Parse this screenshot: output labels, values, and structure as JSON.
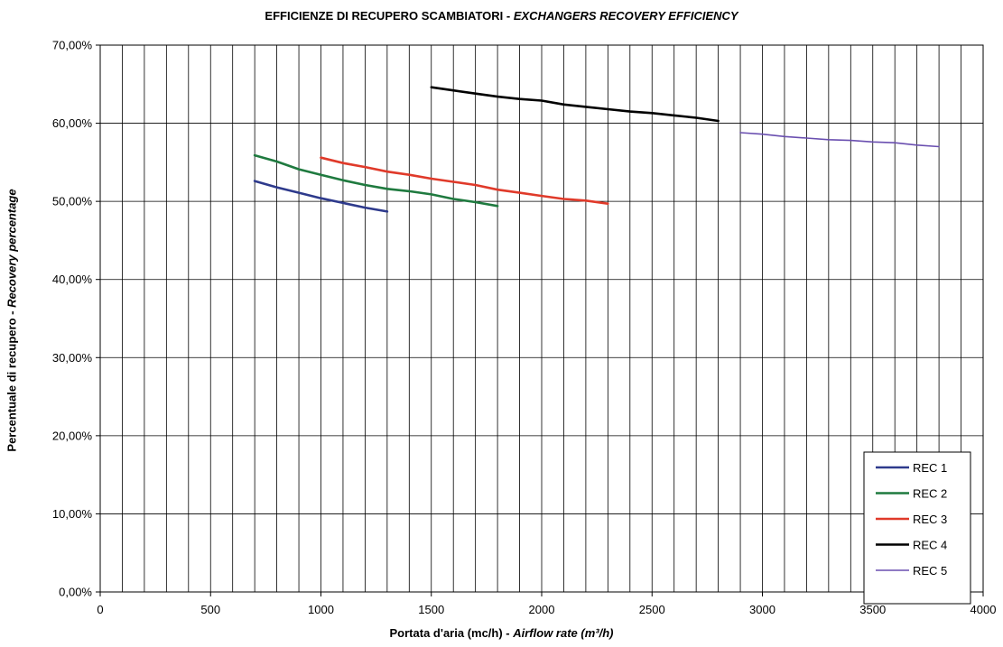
{
  "chart_data": {
    "type": "line",
    "title_main": "EFFICIENZE DI RECUPERO SCAMBIATORI - ",
    "title_italic": "EXCHANGERS RECOVERY EFFICIENCY",
    "xlabel_main": "Portata d'aria (mc/h) - ",
    "xlabel_italic": "Airflow rate (m³/h)",
    "ylabel_main": "Percentuale di recupero - ",
    "ylabel_italic": "Recovery percentage",
    "xlim": [
      0,
      4000
    ],
    "ylim": [
      0,
      0.7
    ],
    "x_ticks": [
      0,
      500,
      1000,
      1500,
      2000,
      2500,
      3000,
      3500,
      4000
    ],
    "x_tick_labels": [
      "0",
      "500",
      "1000",
      "1500",
      "2000",
      "2500",
      "3000",
      "3500",
      "4000"
    ],
    "x_minor_grid_step": 100,
    "y_ticks": [
      0,
      0.1,
      0.2,
      0.3,
      0.4,
      0.5,
      0.6,
      0.7
    ],
    "y_tick_labels": [
      "0,00%",
      "10,00%",
      "20,00%",
      "30,00%",
      "40,00%",
      "50,00%",
      "60,00%",
      "70,00%"
    ],
    "grid": true,
    "legend_position": "bottom-right",
    "series": [
      {
        "name": "REC 1",
        "color": "#2e3a8c",
        "x": [
          700,
          800,
          900,
          1000,
          1100,
          1200,
          1300
        ],
        "y": [
          0.526,
          0.518,
          0.511,
          0.504,
          0.498,
          0.492,
          0.487
        ]
      },
      {
        "name": "REC 2",
        "color": "#1f7a3f",
        "x": [
          700,
          800,
          900,
          1000,
          1100,
          1200,
          1300,
          1400,
          1500,
          1600,
          1700,
          1800
        ],
        "y": [
          0.559,
          0.551,
          0.541,
          0.534,
          0.527,
          0.521,
          0.516,
          0.513,
          0.509,
          0.503,
          0.499,
          0.494
        ]
      },
      {
        "name": "REC 3",
        "color": "#e03a2a",
        "x": [
          1000,
          1100,
          1200,
          1300,
          1400,
          1500,
          1600,
          1700,
          1800,
          1900,
          2000,
          2100,
          2200,
          2300
        ],
        "y": [
          0.556,
          0.549,
          0.544,
          0.538,
          0.534,
          0.529,
          0.525,
          0.521,
          0.515,
          0.511,
          0.507,
          0.503,
          0.501,
          0.497
        ]
      },
      {
        "name": "REC 4",
        "color": "#000000",
        "x": [
          1500,
          1600,
          1700,
          1800,
          1900,
          2000,
          2100,
          2200,
          2300,
          2400,
          2500,
          2600,
          2700,
          2800
        ],
        "y": [
          0.646,
          0.642,
          0.638,
          0.634,
          0.631,
          0.629,
          0.624,
          0.621,
          0.618,
          0.615,
          0.613,
          0.61,
          0.607,
          0.603
        ]
      },
      {
        "name": "REC 5",
        "color": "#6a4fb0",
        "x": [
          2900,
          3000,
          3100,
          3200,
          3300,
          3400,
          3500,
          3600,
          3700,
          3800
        ],
        "y": [
          0.588,
          0.586,
          0.583,
          0.581,
          0.579,
          0.578,
          0.576,
          0.575,
          0.572,
          0.57
        ]
      }
    ]
  }
}
